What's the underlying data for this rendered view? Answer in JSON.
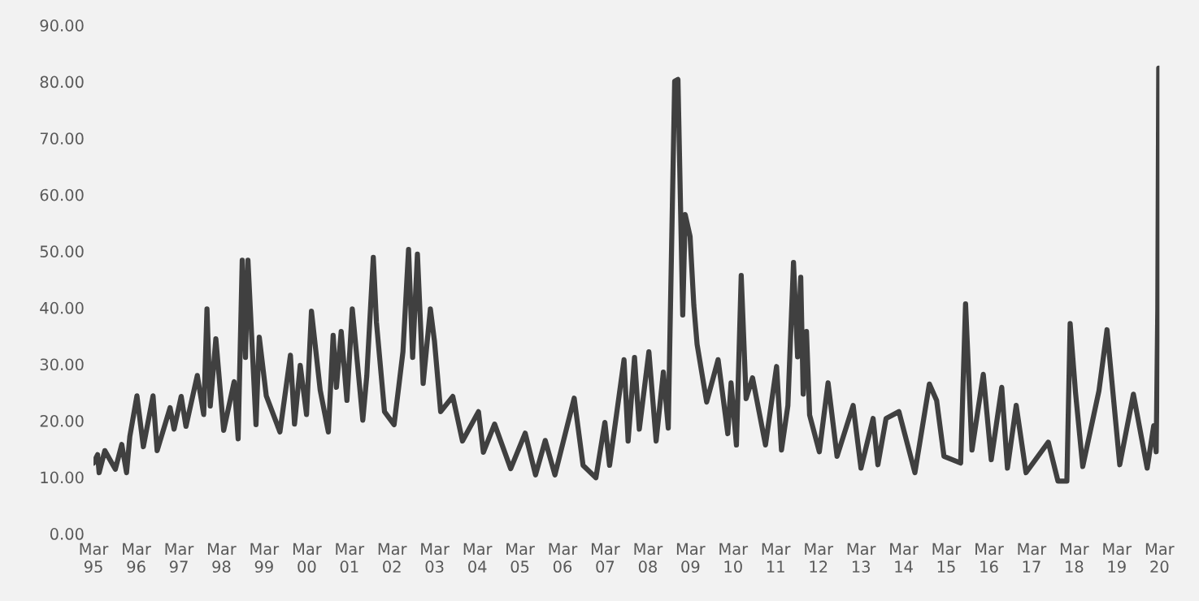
{
  "chart_data": {
    "type": "line",
    "x": [
      "1995-03-01",
      "1995-04-05",
      "1995-04-18",
      "1995-06-06",
      "1995-09-04",
      "1995-10-29",
      "1995-12-09",
      "1996-01-06",
      "1996-03-07",
      "1996-05-01",
      "1996-07-23",
      "1996-08-27",
      "1996-12-16",
      "1997-01-19",
      "1997-03-21",
      "1997-05-01",
      "1997-08-06",
      "1997-09-30",
      "1997-10-28",
      "1997-11-25",
      "1998-01-12",
      "1998-03-20",
      "1998-06-18",
      "1998-07-22",
      "1998-08-26",
      "1998-09-23",
      "1998-10-14",
      "1998-12-22",
      "1999-01-19",
      "1999-03-20",
      "1999-07-15",
      "1999-10-13",
      "1999-11-17",
      "2000-01-05",
      "2000-02-28",
      "2000-04-10",
      "2000-06-24",
      "2000-09-02",
      "2000-10-13",
      "2000-11-10",
      "2000-12-21",
      "2001-02-08",
      "2001-03-26",
      "2001-06-24",
      "2001-07-28",
      "2001-09-22",
      "2001-10-19",
      "2001-12-27",
      "2002-03-19",
      "2002-04-29",
      "2002-06-03",
      "2002-07-21",
      "2002-08-25",
      "2002-10-05",
      "2002-11-23",
      "2003-01-24",
      "2003-02-28",
      "2003-04-22",
      "2003-08-04",
      "2003-10-26",
      "2004-03-11",
      "2004-04-22",
      "2004-07-27",
      "2004-12-12",
      "2005-04-15",
      "2005-07-13",
      "2005-10-04",
      "2005-12-26",
      "2006-06-09",
      "2006-08-24",
      "2006-12-12",
      "2007-02-27",
      "2007-04-08",
      "2007-08-10",
      "2007-09-14",
      "2007-11-08",
      "2007-12-19",
      "2008-03-10",
      "2008-05-11",
      "2008-07-12",
      "2008-08-23",
      "2008-09-07",
      "2008-10-17",
      "2008-11-14",
      "2008-12-25",
      "2009-01-15",
      "2009-02-26",
      "2009-03-30",
      "2009-04-27",
      "2009-07-18",
      "2009-10-24",
      "2010-01-15",
      "2010-02-12",
      "2010-03-30",
      "2010-05-10",
      "2010-06-21",
      "2010-08-15",
      "2010-12-04",
      "2011-03-09",
      "2011-04-20",
      "2011-06-14",
      "2011-08-01",
      "2011-09-05",
      "2011-10-02",
      "2011-10-23",
      "2011-11-20",
      "2011-12-17",
      "2012-03-09",
      "2012-05-23",
      "2012-08-08",
      "2012-12-24",
      "2013-03-01",
      "2013-06-13",
      "2013-07-24",
      "2013-10-02",
      "2014-01-20",
      "2014-06-06",
      "2014-10-08",
      "2014-12-09",
      "2015-02-10",
      "2015-07-03",
      "2015-08-14",
      "2015-10-08",
      "2016-01-13",
      "2016-03-21",
      "2016-06-19",
      "2016-08-07",
      "2016-10-21",
      "2017-01-13",
      "2017-07-23",
      "2017-10-14",
      "2017-12-29",
      "2018-01-26",
      "2018-03-13",
      "2018-05-14",
      "2018-09-30",
      "2018-12-08",
      "2019-03-27",
      "2019-07-22",
      "2019-11-17",
      "2020-01-12",
      "2020-02-02",
      "2020-02-16",
      "2020-02-24",
      "2020-03-01"
    ],
    "series": [
      {
        "color": "#404040",
        "values": [
          12.5,
          14,
          10.8,
          14.7,
          11.4,
          15.8,
          10.8,
          17.2,
          24.4,
          15.4,
          24.4,
          14.7,
          22.3,
          18.5,
          24.3,
          19,
          28,
          21.1,
          39.8,
          22.6,
          34.5,
          18.3,
          26.9,
          16.8,
          48.4,
          31.2,
          48.4,
          19.3,
          34.8,
          24.4,
          18,
          31.6,
          19.4,
          29.8,
          21.1,
          39.4,
          25.4,
          18,
          35.1,
          25.9,
          35.8,
          23.6,
          39.8,
          20.1,
          27.9,
          48.9,
          37.4,
          21.6,
          19.3,
          26.2,
          32.2,
          50.3,
          31.2,
          49.5,
          26.6,
          39.8,
          34.1,
          21.6,
          24.3,
          16.4,
          21.6,
          14.4,
          19.4,
          11.5,
          17.8,
          10.4,
          16.5,
          10.4,
          24,
          12.1,
          9.9,
          19.7,
          12.1,
          30.8,
          16.4,
          31.2,
          18.5,
          32.2,
          16.4,
          28.6,
          18.7,
          35.8,
          80.1,
          80.4,
          38.7,
          56.5,
          52.6,
          40.4,
          33.5,
          23.3,
          30.8,
          17.7,
          26.7,
          15.7,
          45.7,
          23.9,
          27.6,
          15.7,
          29.6,
          14.8,
          22.7,
          48,
          31.3,
          45.4,
          24.7,
          35.8,
          21,
          14.5,
          26.7,
          13.7,
          22.7,
          11.6,
          20.4,
          12.2,
          20.4,
          21.6,
          10.8,
          26.5,
          23.6,
          13.7,
          12.5,
          40.7,
          14.8,
          28.2,
          13.1,
          25.9,
          11.6,
          22.7,
          10.8,
          16.2,
          9.3,
          9.3,
          37.2,
          25,
          11.9,
          25.3,
          36.1,
          12.2,
          24.7,
          11.6,
          19.1,
          14.5,
          39.8,
          82.4,
          57.4
        ]
      }
    ],
    "xlim": [
      "1995-03-01",
      "2020-03-01"
    ],
    "xticks": [
      {
        "value": "1995-03-01",
        "label": "Mar\n95"
      },
      {
        "value": "1996-03-01",
        "label": "Mar\n96"
      },
      {
        "value": "1997-03-01",
        "label": "Mar\n97"
      },
      {
        "value": "1998-03-01",
        "label": "Mar\n98"
      },
      {
        "value": "1999-03-01",
        "label": "Mar\n99"
      },
      {
        "value": "2000-03-01",
        "label": "Mar\n00"
      },
      {
        "value": "2001-03-01",
        "label": "Mar\n01"
      },
      {
        "value": "2002-03-01",
        "label": "Mar\n02"
      },
      {
        "value": "2003-03-01",
        "label": "Mar\n03"
      },
      {
        "value": "2004-03-01",
        "label": "Mar\n04"
      },
      {
        "value": "2005-03-01",
        "label": "Mar\n05"
      },
      {
        "value": "2006-03-01",
        "label": "Mar\n06"
      },
      {
        "value": "2007-03-01",
        "label": "Mar\n07"
      },
      {
        "value": "2008-03-01",
        "label": "Mar\n08"
      },
      {
        "value": "2009-03-01",
        "label": "Mar\n09"
      },
      {
        "value": "2010-03-01",
        "label": "Mar\n10"
      },
      {
        "value": "2011-03-01",
        "label": "Mar\n11"
      },
      {
        "value": "2012-03-01",
        "label": "Mar\n12"
      },
      {
        "value": "2013-03-01",
        "label": "Mar\n13"
      },
      {
        "value": "2014-03-01",
        "label": "Mar\n14"
      },
      {
        "value": "2015-03-01",
        "label": "Mar\n15"
      },
      {
        "value": "2016-03-01",
        "label": "Mar\n16"
      },
      {
        "value": "2017-03-01",
        "label": "Mar\n17"
      },
      {
        "value": "2018-03-01",
        "label": "Mar\n18"
      },
      {
        "value": "2019-03-01",
        "label": "Mar\n19"
      },
      {
        "value": "2020-03-01",
        "label": "Mar\n20"
      }
    ],
    "ylim": [
      0,
      90
    ],
    "yticks": [
      {
        "value": 0,
        "label": "0.00"
      },
      {
        "value": 10,
        "label": "10.00"
      },
      {
        "value": 20,
        "label": "20.00"
      },
      {
        "value": 30,
        "label": "30.00"
      },
      {
        "value": 40,
        "label": "40.00"
      },
      {
        "value": 50,
        "label": "50.00"
      },
      {
        "value": 60,
        "label": "60.00"
      },
      {
        "value": 70,
        "label": "70.00"
      },
      {
        "value": 80,
        "label": "80.00"
      },
      {
        "value": 90,
        "label": "90.00"
      }
    ],
    "grid": false,
    "legend": false,
    "marker": "none",
    "line_style": "solid"
  }
}
